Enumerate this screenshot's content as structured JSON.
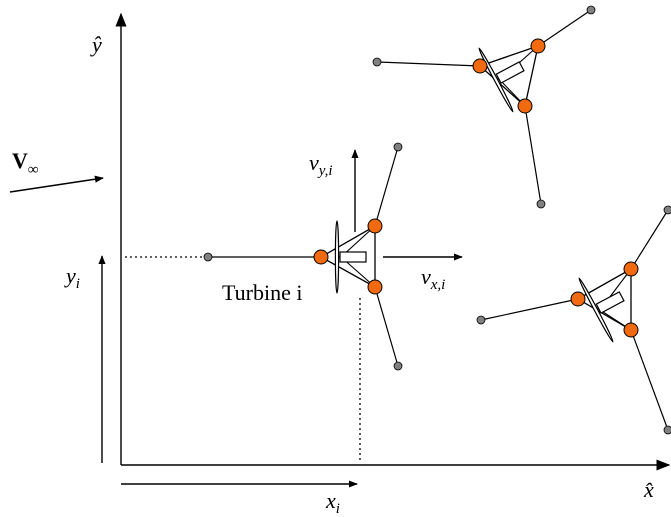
{
  "axes": {
    "y_axis": "ŷ",
    "x_axis": "x̂"
  },
  "wind": {
    "symbol": "V",
    "subscript": "∞"
  },
  "position": {
    "y": {
      "symbol": "y",
      "subscript": "i"
    },
    "x": {
      "symbol": "x",
      "subscript": "i"
    }
  },
  "velocity": {
    "y": {
      "symbol": "v",
      "subscript": "y,i"
    },
    "x": {
      "symbol": "v",
      "subscript": "x,i"
    }
  },
  "turbine_label": "Turbine i"
}
